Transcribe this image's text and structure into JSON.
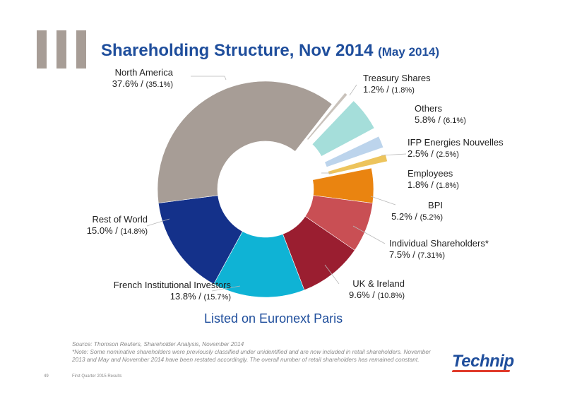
{
  "title": "Shareholding Structure, Nov 2014",
  "title_sub": "(May 2014)",
  "chart_data": {
    "type": "pie",
    "donut": true,
    "title": "Shareholding Structure, Nov 2014 (May 2014)",
    "slices": [
      {
        "label": "Treasury Shares",
        "value": 1.2,
        "value_label": "1.2%",
        "prev_label": "(1.8%)",
        "color": "#c9c2bb",
        "exploded": true
      },
      {
        "label": "Others",
        "value": 5.8,
        "value_label": "5.8%",
        "prev_label": "(6.1%)",
        "color": "#a5deda",
        "exploded": true
      },
      {
        "label": "IFP Energies Nouvelles",
        "value": 2.5,
        "value_label": "2.5%",
        "prev_label": "(2.5%)",
        "color": "#bcd4ec",
        "exploded": true
      },
      {
        "label": "Employees",
        "value": 1.8,
        "value_label": "1.8%",
        "prev_label": "(1.8%)",
        "color": "#edc45c",
        "exploded": true
      },
      {
        "label": "BPI",
        "value": 5.2,
        "value_label": "5.2%",
        "prev_label": "(5.2%)",
        "color": "#ea8410",
        "exploded": false
      },
      {
        "label": "Individual Shareholders*",
        "value": 7.5,
        "value_label": "7.5%",
        "prev_label": "(7.31%)",
        "color": "#c94f54",
        "exploded": false
      },
      {
        "label": "UK & Ireland",
        "value": 9.6,
        "value_label": "9.6%",
        "prev_label": "(10.8%)",
        "color": "#9a1e30",
        "exploded": false
      },
      {
        "label": "French Institutional Investors",
        "value": 13.8,
        "value_label": "13.8%",
        "prev_label": "(15.7%)",
        "color": "#0fb3d5",
        "exploded": false
      },
      {
        "label": "Rest of World",
        "value": 15.0,
        "value_label": "15.0%",
        "prev_label": "(14.8%)",
        "color": "#14318a",
        "exploded": false
      },
      {
        "label": "North America",
        "value": 37.6,
        "value_label": "37.6%",
        "prev_label": "(35.1%)",
        "color": "#a79d96",
        "exploded": false
      }
    ],
    "sep": "/"
  },
  "listed": "Listed on Euronext Paris",
  "source_lines": [
    "Source: Thomson Reuters, Shareholder Analysis, November 2014",
    "*Note: Some nominative shareholders were previously classified under unidentified and are now included in retail shareholders. November",
    "2013 and May and November 2014 have been restated accordingly. The overall number of retail shareholders has remained constant."
  ],
  "footer": {
    "page": "49",
    "desc": "First Quarter 2015 Results"
  },
  "logo": "Technip"
}
